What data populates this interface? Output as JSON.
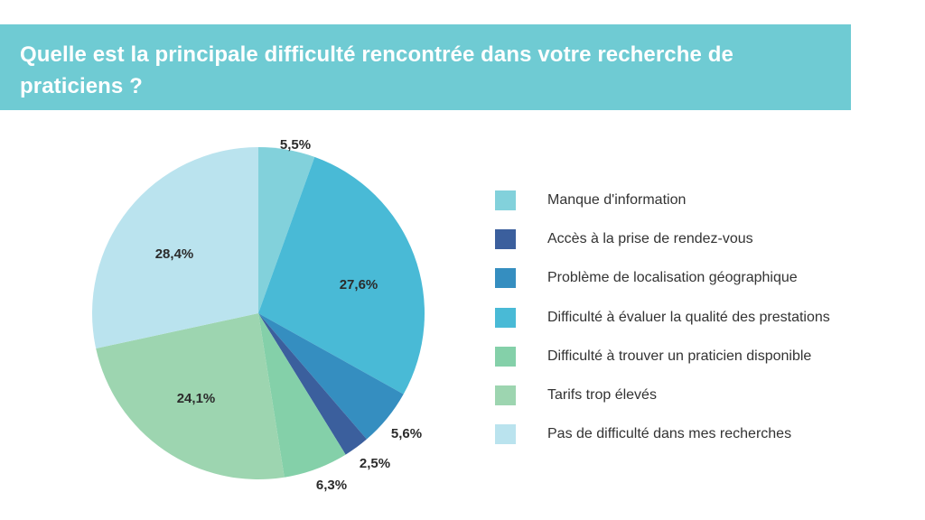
{
  "header": {
    "title": "Quelle est la principale difficulté rencontrée dans votre recherche de praticiens ?"
  },
  "chart_data": {
    "type": "pie",
    "title": "Quelle est la principale difficulté rencontrée dans votre recherche de praticiens ?",
    "start_angle_deg": 0,
    "direction": "clockwise",
    "legend_position": "right",
    "slices": [
      {
        "label": "Manque d'information",
        "value": 5.5,
        "value_label": "5,5%",
        "color": "#82d1db"
      },
      {
        "label": "Accès à la prise de rendez-vous",
        "value": 0,
        "value_label": "",
        "color": "#3b5f9d"
      },
      {
        "label": "Difficulté à évaluer la qualité des prestations",
        "value": 27.6,
        "value_label": "27,6%",
        "color": "#49bad6"
      },
      {
        "label": "Problème de localisation géographique",
        "value": 5.6,
        "value_label": "5,6%",
        "color": "#358ec0"
      },
      {
        "label": "Accès à la prise de rendez-vous",
        "value": 2.5,
        "value_label": "2,5%",
        "color": "#3b5f9d"
      },
      {
        "label": "Difficulté à trouver un praticien disponible",
        "value": 6.3,
        "value_label": "6,3%",
        "color": "#84d0a9"
      },
      {
        "label": "Tarifs trop élevés",
        "value": 24.1,
        "value_label": "24,1%",
        "color": "#9dd5b0"
      },
      {
        "label": "Pas de difficulté dans mes recherches",
        "value": 28.4,
        "value_label": "28,4%",
        "color": "#bae3ee"
      }
    ],
    "legend": [
      {
        "label": "Manque d'information",
        "color": "#82d1db"
      },
      {
        "label": "Accès à la prise de rendez-vous",
        "color": "#3b5f9d"
      },
      {
        "label": "Problème de localisation géographique",
        "color": "#358ec0"
      },
      {
        "label": "Difficulté à évaluer la qualité des prestations",
        "color": "#49bad6"
      },
      {
        "label": "Difficulté à trouver un praticien disponible",
        "color": "#84d0a9"
      },
      {
        "label": "Tarifs trop élevés",
        "color": "#9dd5b0"
      },
      {
        "label": "Pas de difficulté dans mes recherches",
        "color": "#bae3ee"
      }
    ]
  }
}
